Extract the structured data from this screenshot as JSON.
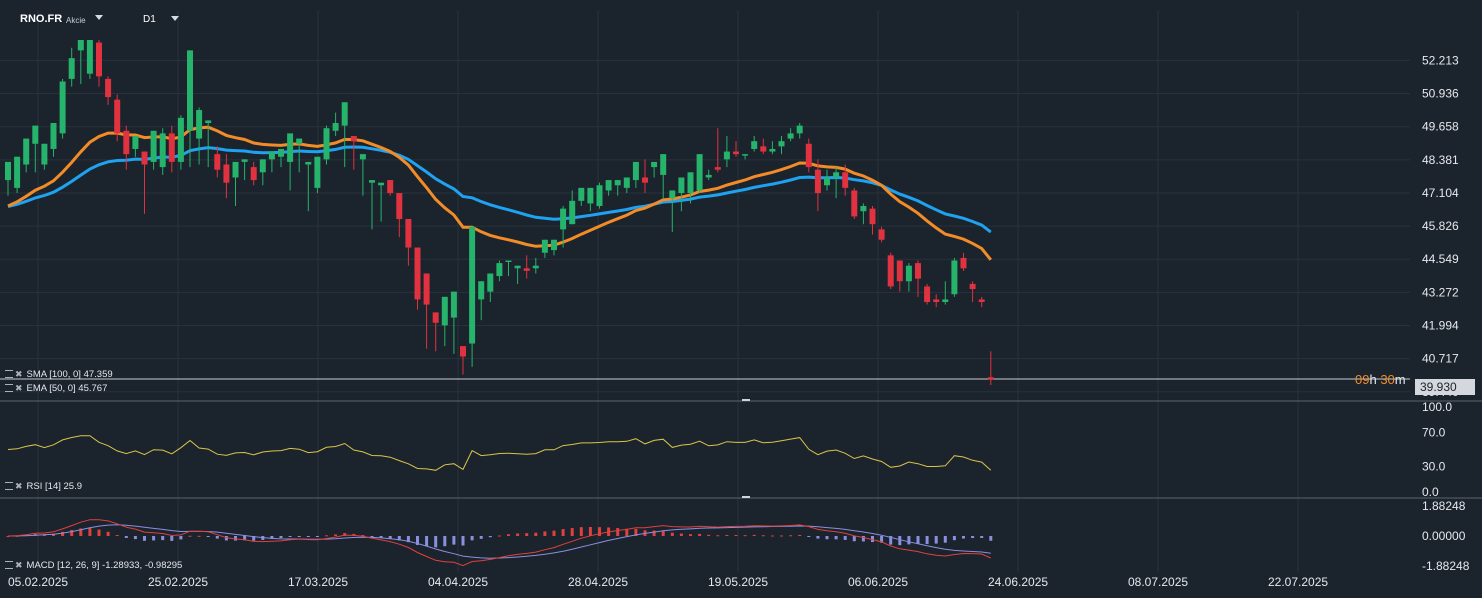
{
  "header": {
    "symbol": "RNO.FR",
    "instrument_type": "Akcie",
    "timeframe": "D1"
  },
  "indicators": {
    "sma": {
      "label": "SMA [100, 0] 47.359",
      "color": "#1fa2f0"
    },
    "ema": {
      "label": "EMA [50, 0] 45.767",
      "color": "#f28c28"
    },
    "rsi": {
      "label": "RSI [14] 25.9",
      "color": "#d9c54a"
    },
    "macd": {
      "label": "MACD [12, 26, 9] -1.28933, -0.98295",
      "macd_color": "#e0413e",
      "signal_color": "#8a90e0"
    }
  },
  "countdown": {
    "hours": "09",
    "h_unit": "h",
    "minutes": "30",
    "m_unit": "m"
  },
  "last_price": "39.930",
  "colors": {
    "up": "#26b36b",
    "down": "#e0323f",
    "background": "#1b232c",
    "grid": "#28323c"
  },
  "chart_data": {
    "type": "candlestick",
    "price_axis": {
      "ticks": [
        "52.213",
        "50.936",
        "49.658",
        "48.381",
        "47.104",
        "45.826",
        "44.549",
        "43.272",
        "41.994",
        "40.717",
        "39.440"
      ],
      "range": [
        39.2,
        53.0
      ]
    },
    "rsi_axis": {
      "ticks": [
        "100.0",
        "70.0",
        "30.0",
        "0.0"
      ]
    },
    "macd_axis": {
      "ticks": [
        "1.88248",
        "0.00000",
        "-1.88248"
      ]
    },
    "time_axis": {
      "ticks": [
        "05.02.2025",
        "25.02.2025",
        "17.03.2025",
        "04.04.2025",
        "28.04.2025",
        "19.05.2025",
        "06.06.2025",
        "24.06.2025",
        "08.07.2025",
        "22.07.2025"
      ]
    },
    "candles": [
      [
        47.6,
        48.3,
        47.1,
        47.0
      ],
      [
        47.3,
        48.5,
        48.3,
        47.1
      ],
      [
        48.2,
        49.2,
        49.0,
        47.9
      ],
      [
        49.0,
        49.7,
        48.1,
        47.9
      ],
      [
        48.2,
        49.0,
        48.8,
        48.0
      ],
      [
        48.8,
        49.8,
        49.4,
        48.5
      ],
      [
        49.4,
        51.4,
        51.5,
        49.2
      ],
      [
        51.5,
        52.3,
        52.7,
        51.2
      ],
      [
        52.6,
        53.0,
        51.6,
        51.3
      ],
      [
        51.7,
        53.0,
        52.9,
        51.5
      ],
      [
        52.9,
        51.6,
        53.0,
        51.2
      ],
      [
        51.5,
        50.8,
        51.6,
        50.5
      ],
      [
        50.7,
        49.4,
        50.9,
        49.1
      ],
      [
        49.5,
        48.6,
        49.7,
        48.0
      ],
      [
        48.8,
        49.3,
        48.1,
        48.5
      ],
      [
        48.7,
        48.2,
        47.5,
        46.3
      ],
      [
        48.3,
        49.5,
        48.2,
        48.0
      ],
      [
        48.1,
        49.4,
        49.6,
        47.8
      ],
      [
        49.4,
        48.3,
        49.7,
        47.9
      ],
      [
        48.3,
        50.0,
        50.1,
        48.0
      ],
      [
        49.5,
        52.6,
        50.4,
        48.1
      ],
      [
        49.2,
        50.3,
        50.4,
        48.2
      ],
      [
        49.8,
        49.9,
        48.5,
        48.1
      ],
      [
        48.6,
        48.0,
        48.9,
        47.7
      ],
      [
        48.2,
        47.5,
        48.6,
        46.9
      ],
      [
        47.7,
        48.3,
        47.9,
        46.6
      ],
      [
        48.3,
        48.4,
        48.1,
        47.6
      ],
      [
        48.1,
        47.6,
        48.3,
        47.4
      ],
      [
        47.9,
        48.4,
        48.0,
        47.4
      ],
      [
        48.4,
        48.7,
        48.1,
        47.9
      ],
      [
        48.5,
        48.8,
        48.3,
        48.1
      ],
      [
        48.3,
        49.4,
        48.0,
        47.2
      ],
      [
        49.0,
        49.2,
        48.0,
        47.9
      ],
      [
        48.2,
        48.3,
        47.4,
        46.4
      ],
      [
        47.3,
        48.5,
        48.4,
        47.1
      ],
      [
        48.4,
        49.6,
        49.7,
        48.2
      ],
      [
        49.5,
        49.8,
        50.2,
        49.3
      ],
      [
        49.7,
        50.6,
        49.4,
        48.1
      ],
      [
        49.3,
        49.1,
        48.2,
        48.0
      ],
      [
        48.4,
        48.6,
        47.2,
        47.0
      ],
      [
        47.5,
        47.6,
        46.6,
        45.7
      ],
      [
        47.4,
        47.5,
        47.2,
        46.0
      ],
      [
        47.6,
        47.1,
        47.4,
        47.0
      ],
      [
        47.1,
        46.1,
        45.8,
        45.4
      ],
      [
        46.1,
        45.0,
        45.2,
        44.3
      ],
      [
        45.0,
        43.0,
        44.3,
        42.6
      ],
      [
        44.0,
        42.8,
        41.6,
        41.1
      ],
      [
        42.5,
        42.1,
        41.4,
        41.0
      ],
      [
        42.0,
        43.1,
        42.1,
        41.2
      ],
      [
        42.3,
        43.3,
        41.0,
        40.9
      ],
      [
        41.2,
        40.8,
        40.3,
        40.1
      ],
      [
        41.3,
        45.8,
        45.7,
        40.4
      ],
      [
        43.0,
        43.7,
        42.6,
        42.2
      ],
      [
        43.3,
        44.0,
        43.7,
        42.9
      ],
      [
        43.9,
        44.4,
        44.5,
        43.7
      ],
      [
        44.5,
        44.5,
        44.1,
        43.9
      ],
      [
        44.2,
        44.3,
        43.9,
        43.6
      ],
      [
        44.2,
        44.1,
        44.7,
        43.8
      ],
      [
        44.2,
        44.3,
        44.6,
        44.0
      ],
      [
        44.8,
        45.3,
        44.9,
        44.6
      ],
      [
        44.9,
        45.3,
        45.1,
        44.7
      ],
      [
        45.7,
        46.5,
        46.6,
        45.0
      ],
      [
        45.9,
        46.8,
        47.2,
        45.9
      ],
      [
        46.8,
        47.3,
        46.8,
        46.6
      ],
      [
        46.7,
        47.3,
        46.6,
        46.4
      ],
      [
        46.6,
        47.4,
        47.5,
        46.5
      ],
      [
        47.2,
        47.6,
        47.6,
        47.0
      ],
      [
        47.4,
        47.6,
        47.1,
        47.0
      ],
      [
        47.3,
        47.7,
        47.7,
        47.1
      ],
      [
        47.6,
        48.3,
        47.8,
        47.3
      ],
      [
        47.7,
        47.5,
        48.4,
        47.1
      ],
      [
        48.1,
        48.3,
        48.0,
        47.7
      ],
      [
        47.8,
        48.6,
        47.9,
        46.9
      ],
      [
        46.9,
        47.2,
        47.0,
        45.6
      ],
      [
        47.1,
        47.7,
        46.7,
        46.4
      ],
      [
        47.1,
        47.9,
        47.2,
        46.7
      ],
      [
        47.2,
        48.6,
        47.9,
        47.1
      ],
      [
        47.7,
        47.8,
        48.0,
        47.6
      ],
      [
        48.1,
        48.0,
        49.6,
        47.9
      ],
      [
        48.4,
        48.7,
        49.3,
        48.1
      ],
      [
        48.7,
        48.6,
        49.1,
        48.5
      ],
      [
        48.6,
        48.6,
        48.5,
        48.4
      ],
      [
        48.8,
        49.1,
        49.3,
        48.7
      ],
      [
        48.9,
        48.7,
        49.2,
        48.6
      ],
      [
        48.7,
        48.8,
        49.1,
        48.6
      ],
      [
        48.9,
        49.1,
        49.3,
        48.6
      ],
      [
        49.2,
        49.4,
        49.6,
        49.1
      ],
      [
        49.4,
        49.7,
        49.8,
        49.2
      ],
      [
        49.0,
        48.1,
        49.2,
        47.9
      ],
      [
        48.0,
        47.1,
        48.4,
        46.4
      ],
      [
        47.4,
        47.7,
        48.0,
        47.2
      ],
      [
        47.7,
        47.9,
        48.1,
        46.9
      ],
      [
        47.9,
        47.3,
        48.2,
        47.0
      ],
      [
        47.2,
        46.2,
        47.3,
        46.1
      ],
      [
        46.4,
        46.6,
        46.7,
        45.9
      ],
      [
        46.5,
        45.9,
        46.6,
        45.5
      ],
      [
        45.7,
        45.3,
        45.8,
        45.2
      ],
      [
        44.7,
        43.5,
        44.8,
        43.4
      ],
      [
        44.5,
        43.7,
        44.5,
        43.3
      ],
      [
        43.7,
        44.3,
        44.4,
        43.3
      ],
      [
        44.4,
        43.8,
        44.5,
        43.1
      ],
      [
        43.5,
        42.9,
        43.6,
        42.8
      ],
      [
        43.0,
        42.9,
        43.2,
        42.7
      ],
      [
        42.9,
        43.0,
        43.7,
        42.8
      ],
      [
        43.2,
        44.5,
        44.6,
        43.1
      ],
      [
        44.6,
        44.2,
        44.8,
        44.1
      ],
      [
        43.6,
        43.4,
        43.7,
        42.9
      ],
      [
        43.0,
        42.9,
        43.1,
        42.7
      ],
      [
        40.0,
        39.9,
        41.0,
        39.7
      ]
    ]
  }
}
